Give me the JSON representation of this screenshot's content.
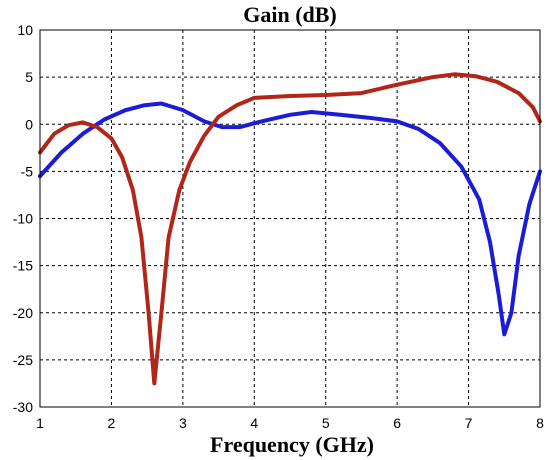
{
  "chart_data": {
    "type": "line",
    "title": "Gain (dB)",
    "xlabel": "Frequency (GHz)",
    "ylabel": "",
    "xlim": [
      1,
      8
    ],
    "ylim": [
      -30,
      10
    ],
    "x_ticks": [
      1,
      2,
      3,
      4,
      5,
      6,
      7,
      8
    ],
    "y_ticks": [
      10,
      5,
      0,
      -5,
      -10,
      -15,
      -20,
      -25,
      -30
    ],
    "grid": true,
    "series": [
      {
        "color": "#1c1cd6",
        "points": [
          [
            1.0,
            -5.5
          ],
          [
            1.3,
            -3.0
          ],
          [
            1.6,
            -1.0
          ],
          [
            1.9,
            0.5
          ],
          [
            2.2,
            1.5
          ],
          [
            2.45,
            2.0
          ],
          [
            2.7,
            2.2
          ],
          [
            3.0,
            1.5
          ],
          [
            3.3,
            0.3
          ],
          [
            3.55,
            -0.3
          ],
          [
            3.8,
            -0.3
          ],
          [
            4.1,
            0.3
          ],
          [
            4.5,
            1.0
          ],
          [
            4.8,
            1.3
          ],
          [
            5.2,
            1.0
          ],
          [
            5.6,
            0.7
          ],
          [
            6.0,
            0.3
          ],
          [
            6.3,
            -0.5
          ],
          [
            6.6,
            -2.0
          ],
          [
            6.9,
            -4.5
          ],
          [
            7.15,
            -8.0
          ],
          [
            7.3,
            -12.5
          ],
          [
            7.42,
            -18.0
          ],
          [
            7.5,
            -22.3
          ],
          [
            7.6,
            -20.0
          ],
          [
            7.7,
            -14.0
          ],
          [
            7.85,
            -8.5
          ],
          [
            8.0,
            -5.0
          ]
        ]
      },
      {
        "color": "#b2261a",
        "points": [
          [
            1.0,
            -3.0
          ],
          [
            1.2,
            -1.0
          ],
          [
            1.4,
            -0.1
          ],
          [
            1.6,
            0.2
          ],
          [
            1.8,
            -0.3
          ],
          [
            2.0,
            -1.5
          ],
          [
            2.15,
            -3.5
          ],
          [
            2.3,
            -7.0
          ],
          [
            2.42,
            -12.0
          ],
          [
            2.52,
            -20.0
          ],
          [
            2.6,
            -27.5
          ],
          [
            2.7,
            -20.0
          ],
          [
            2.8,
            -12.0
          ],
          [
            2.95,
            -7.0
          ],
          [
            3.1,
            -4.0
          ],
          [
            3.3,
            -1.2
          ],
          [
            3.5,
            0.8
          ],
          [
            3.75,
            2.0
          ],
          [
            4.0,
            2.8
          ],
          [
            4.5,
            3.0
          ],
          [
            5.0,
            3.1
          ],
          [
            5.5,
            3.3
          ],
          [
            6.0,
            4.2
          ],
          [
            6.5,
            5.0
          ],
          [
            6.8,
            5.3
          ],
          [
            7.1,
            5.1
          ],
          [
            7.4,
            4.5
          ],
          [
            7.7,
            3.3
          ],
          [
            7.9,
            1.8
          ],
          [
            8.0,
            0.3
          ]
        ]
      }
    ]
  }
}
